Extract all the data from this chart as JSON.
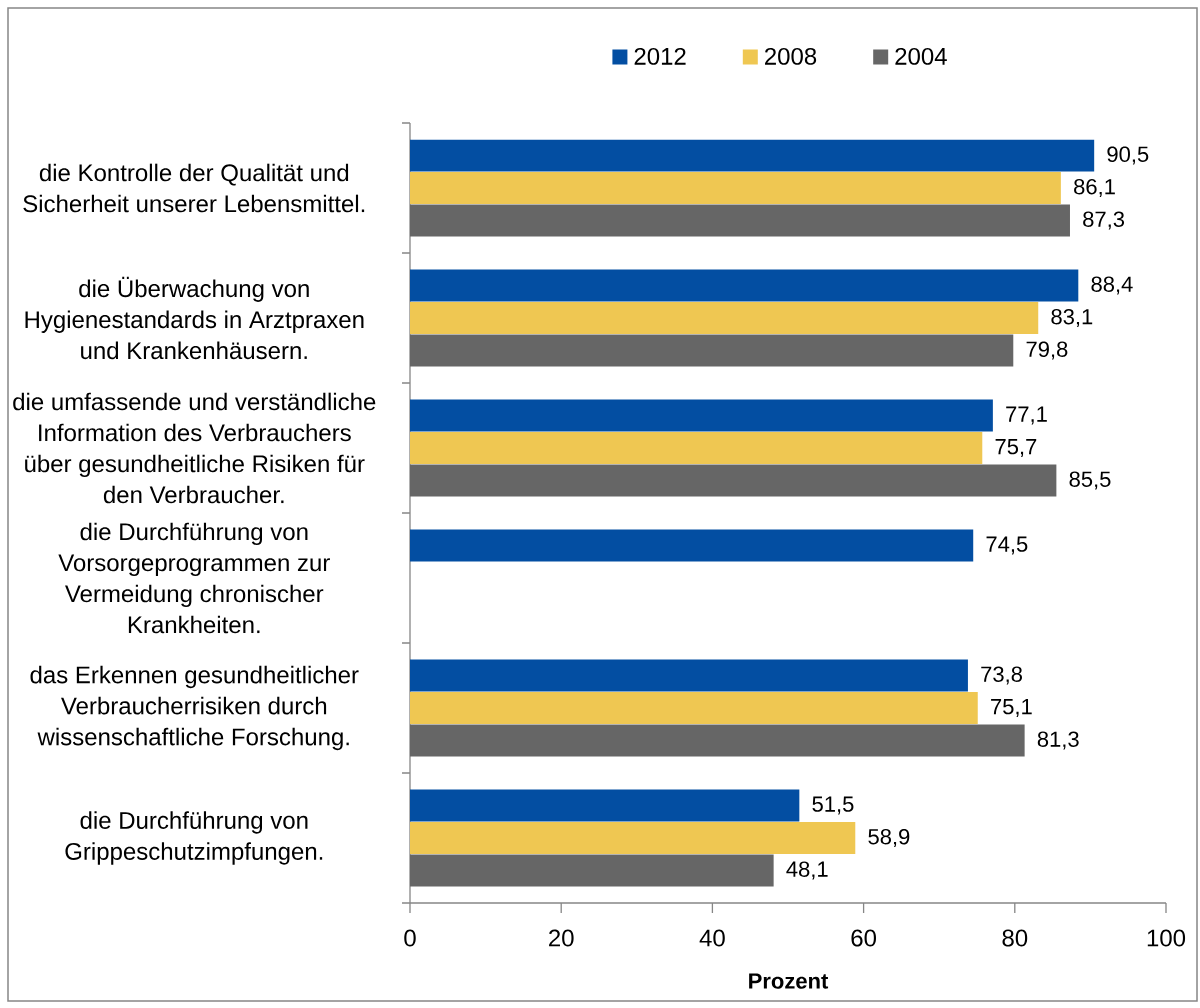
{
  "chart_data": {
    "type": "bar",
    "orientation": "horizontal",
    "categories": [
      "die Kontrolle der Qualität und Sicherheit unserer Lebensmittel.",
      "die Überwachung von Hygienestandards in Arztpraxen und Krankenhäusern.",
      "die umfassende und verständliche Information des Verbrauchers über gesundheitliche Risiken für den Verbraucher.",
      "die Durchführung von Vorsorgeprogrammen zur Vermeidung chronischer Krankheiten.",
      "das Erkennen gesundheitlicher Verbraucherrisiken durch wissenschaftliche Forschung.",
      "die Durchführung von Grippeschutzimpfungen."
    ],
    "series": [
      {
        "name": "2012",
        "color": "#034ea2",
        "values": [
          90.5,
          88.4,
          77.1,
          74.5,
          73.8,
          51.5
        ],
        "value_labels": [
          "90,5",
          "88,4",
          "77,1",
          "74,5",
          "73,8",
          "51,5"
        ]
      },
      {
        "name": "2008",
        "color": "#efc752",
        "values": [
          86.1,
          83.1,
          75.7,
          null,
          75.1,
          58.9
        ],
        "value_labels": [
          "86,1",
          "83,1",
          "75,7",
          null,
          "75,1",
          "58,9"
        ]
      },
      {
        "name": "2004",
        "color": "#666666",
        "values": [
          87.3,
          79.8,
          85.5,
          null,
          81.3,
          48.1
        ],
        "value_labels": [
          "87,3",
          "79,8",
          "85,5",
          null,
          "81,3",
          "48,1"
        ]
      }
    ],
    "xlabel": "Prozent",
    "xlim": [
      0,
      100
    ],
    "xticks": [
      0,
      20,
      40,
      60,
      80,
      100
    ],
    "legend": "top"
  }
}
